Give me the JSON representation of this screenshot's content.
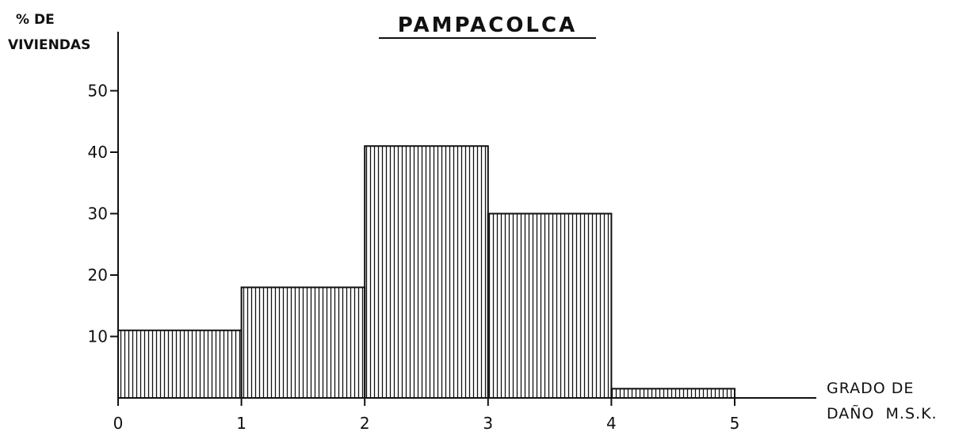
{
  "chart_data": {
    "type": "bar",
    "title": "PAMPACOLCA",
    "ylabel": [
      "% DE",
      "VIVIENDAS"
    ],
    "xlabel": [
      "GRADO DE",
      "DAÑO  M.S.K."
    ],
    "bins": [
      {
        "from": 0,
        "to": 1,
        "value": 11
      },
      {
        "from": 1,
        "to": 2,
        "value": 18
      },
      {
        "from": 2,
        "to": 3,
        "value": 41
      },
      {
        "from": 3,
        "to": 4,
        "value": 30
      },
      {
        "from": 4,
        "to": 5,
        "value": 1.5
      }
    ],
    "x_ticks": [
      "0",
      "1",
      "2",
      "3",
      "4",
      "5"
    ],
    "y_ticks": [
      "10",
      "20",
      "30",
      "40",
      "50"
    ],
    "xlim": [
      0,
      5.7
    ],
    "ylim": [
      0,
      59
    ],
    "grid": false,
    "fill": "vertical hatch",
    "colors": {
      "ink": "#111111",
      "background": "#ffffff"
    }
  }
}
